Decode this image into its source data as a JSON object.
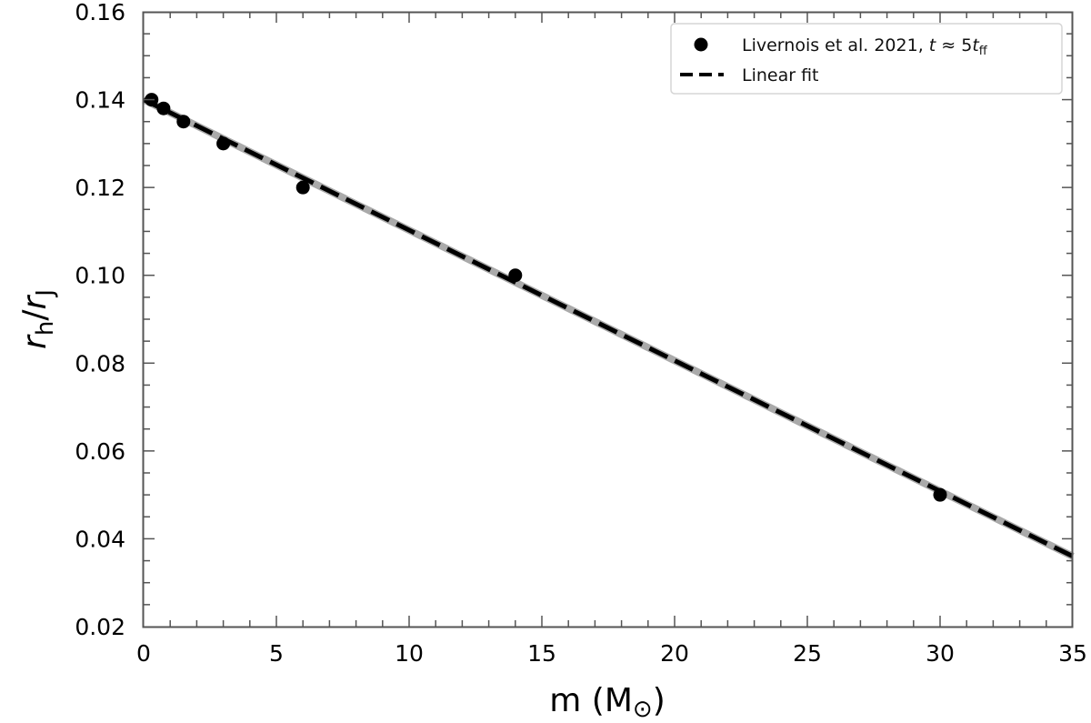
{
  "chart_data": {
    "type": "scatter",
    "title": "",
    "xlabel": "m (M⊙)",
    "ylabel": "r_h/r_J",
    "xlim": [
      0,
      35
    ],
    "ylim": [
      0.02,
      0.16
    ],
    "x_ticks": [
      "0",
      "5",
      "10",
      "15",
      "20",
      "25",
      "30",
      "35"
    ],
    "y_ticks": [
      "0.02",
      "0.04",
      "0.06",
      "0.08",
      "0.10",
      "0.12",
      "0.14",
      "0.16"
    ],
    "grid": false,
    "legend_position": "upper right",
    "series": [
      {
        "name": "Livernois et al. 2021, t ≈ 5t_ff",
        "kind": "scatter",
        "color": "#000000",
        "x": [
          0.3,
          0.75,
          1.5,
          3,
          6,
          14,
          30
        ],
        "y": [
          0.14,
          0.138,
          0.135,
          0.13,
          0.12,
          0.1,
          0.05
        ]
      },
      {
        "name": "Linear fit",
        "kind": "line",
        "style": "dashed",
        "color": "#000000",
        "band_color": "#aaaaaa",
        "x": [
          0,
          35
        ],
        "y": [
          0.14,
          0.036
        ]
      }
    ]
  },
  "legend": {
    "entry1_main": "Livernois et al. 2021, ",
    "entry1_t": "t",
    "entry1_approx": " ≈ 5",
    "entry1_t2": "t",
    "entry1_sub": "ff",
    "entry2": "Linear fit"
  },
  "axes": {
    "xlabel_main": "m (M",
    "xlabel_sun": "⊙",
    "xlabel_close": ")",
    "ylabel_r1": "r",
    "ylabel_sub1": "h",
    "ylabel_slash": "/",
    "ylabel_r2": "r",
    "ylabel_sub2": "J"
  }
}
